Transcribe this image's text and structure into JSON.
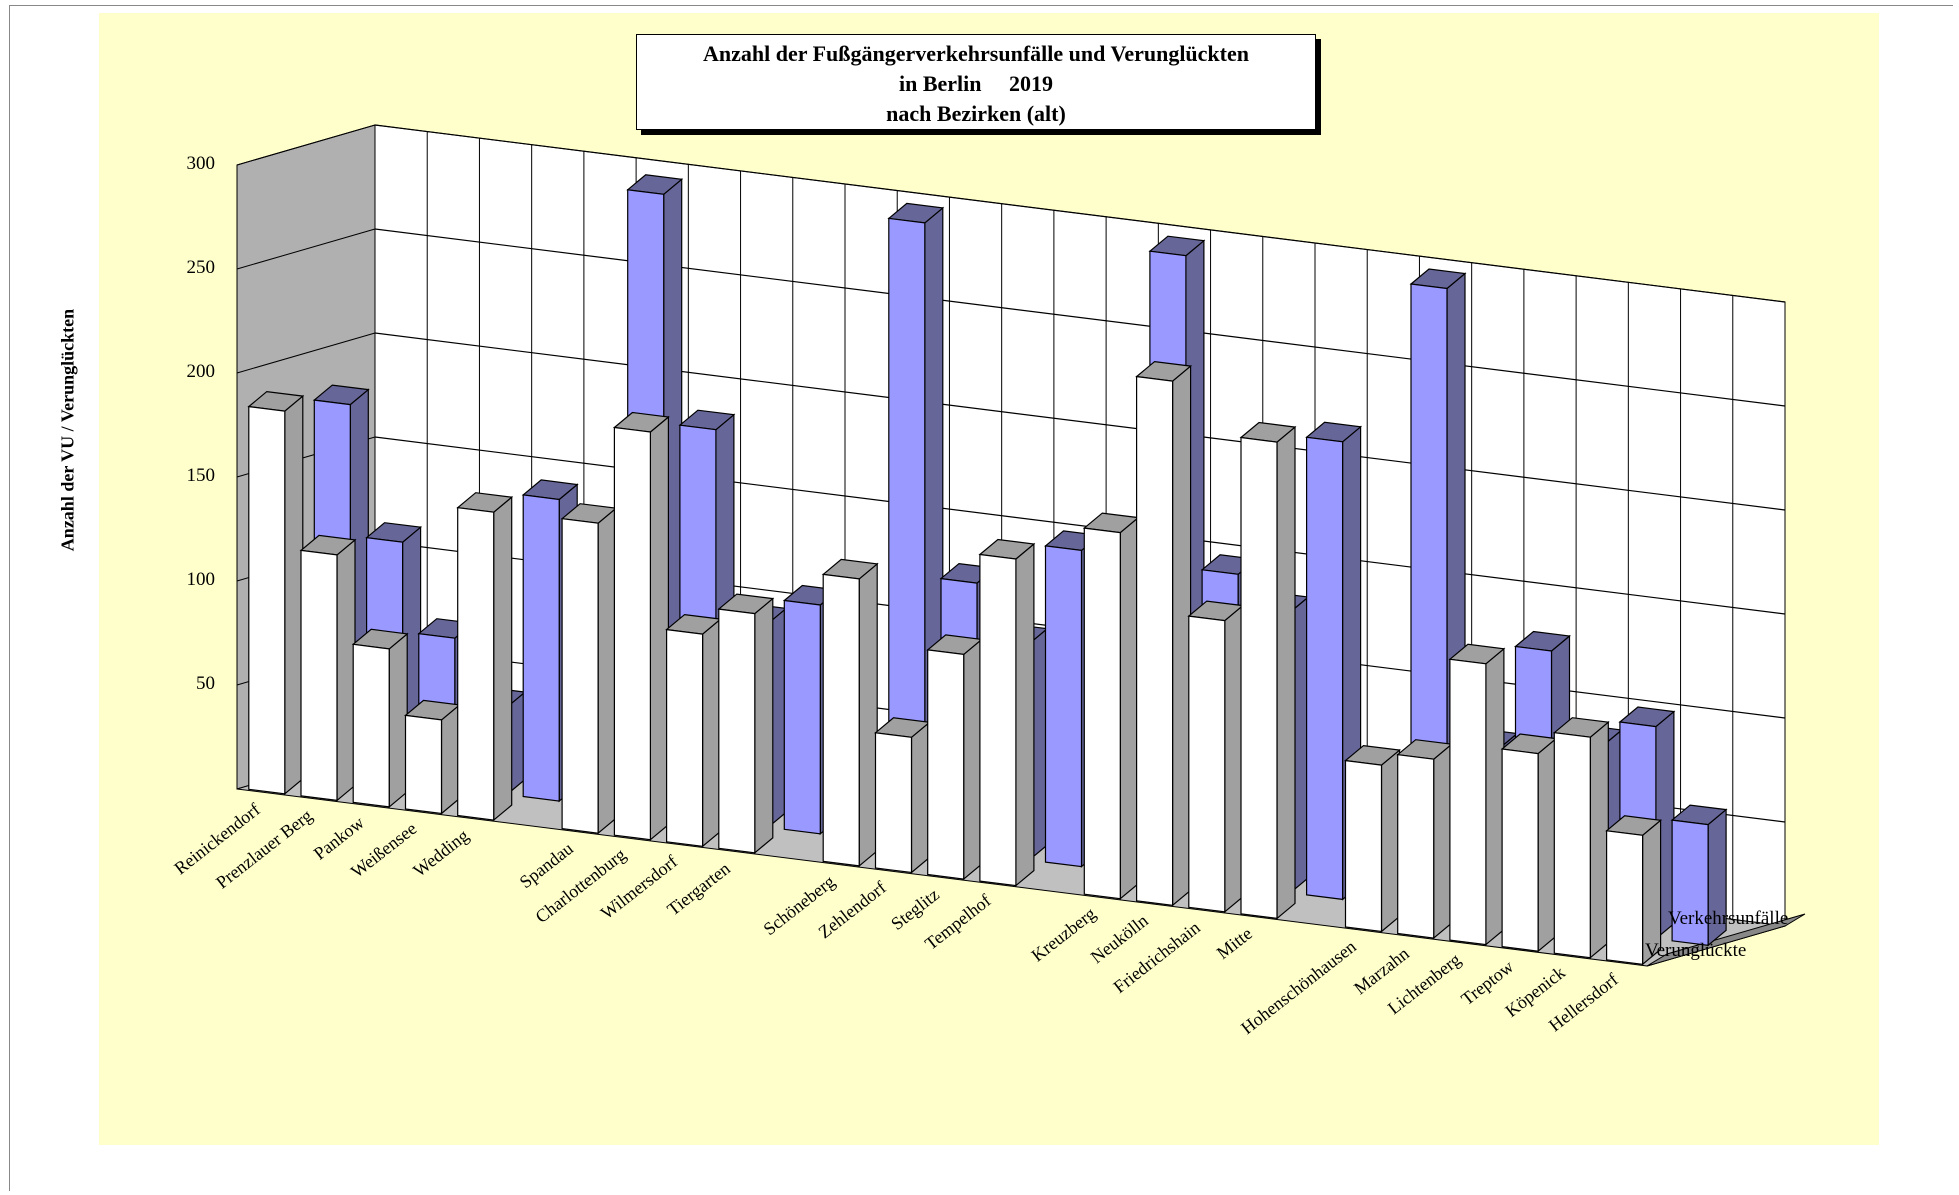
{
  "title": {
    "line1": "Anzahl der Fußgängerverkehrsunfälle und Verunglückten",
    "line2": "in Berlin     2019",
    "line3": "nach Bezirken (alt)"
  },
  "colors": {
    "verunglueckte_front": "#ffffff",
    "verunglueckte_side": "#a0a0a0",
    "verkehrsunfaelle_front": "#9999ff",
    "verkehrsunfaelle_side": "#666699",
    "background": "#ffffcc",
    "walls": "#ffffff",
    "floor": "#c0c0c0",
    "left_wall": "#b0b0b0"
  },
  "chart_data": {
    "type": "bar",
    "subtype": "3d-clustered-depth",
    "title": "Anzahl der Fußgängerverkehrsunfälle und Verunglückten in Berlin 2019 nach Bezirken (alt)",
    "ylabel": "Anzahl der VU / Verunglückten",
    "xlabel": "",
    "ylim": [
      0,
      300
    ],
    "yticks": [
      50,
      100,
      150,
      200,
      250,
      300
    ],
    "grid": true,
    "legend_placement": "right-depth-axis",
    "groups": [
      [
        "Reinickendorf",
        "Prenzlauer Berg",
        "Pankow",
        "Weißensee",
        "Wedding"
      ],
      [
        "Spandau",
        "Charlottenburg",
        "Wilmersdorf",
        "Tiergarten"
      ],
      [
        "Schöneberg",
        "Zehlendorf",
        "Steglitz",
        "Tempelhof"
      ],
      [
        "Kreuzberg",
        "Neukölln",
        "Friedrichshain",
        "Mitte"
      ],
      [
        "Hohenschönhausen",
        "Marzahn",
        "Lichtenberg",
        "Treptow",
        "Köpenick",
        "Hellersdorf"
      ]
    ],
    "categories": [
      "Reinickendorf",
      "Prenzlauer Berg",
      "Pankow",
      "Weißensee",
      "Wedding",
      "Spandau",
      "Charlottenburg",
      "Wilmersdorf",
      "Tiergarten",
      "Schöneberg",
      "Zehlendorf",
      "Steglitz",
      "Tempelhof",
      "Kreuzberg",
      "Neukölln",
      "Friedrichshain",
      "Mitte",
      "Hohenschönhausen",
      "Marzahn",
      "Lichtenberg",
      "Treptow",
      "Köpenick",
      "Hellersdorf"
    ],
    "series": [
      {
        "name": "Verunglückte",
        "values": [
          184,
          118,
          76,
          45,
          148,
          149,
          196,
          102,
          115,
          138,
          65,
          108,
          157,
          176,
          252,
          140,
          229,
          80,
          86,
          135,
          95,
          106,
          62
        ]
      },
      {
        "name": "Verkehrsunfälle",
        "values": [
          178,
          115,
          72,
          42,
          145,
          298,
          188,
          98,
          110,
          300,
          130,
          104,
          152,
          300,
          150,
          135,
          220,
          300,
          82,
          132,
          90,
          102,
          58
        ]
      }
    ]
  }
}
